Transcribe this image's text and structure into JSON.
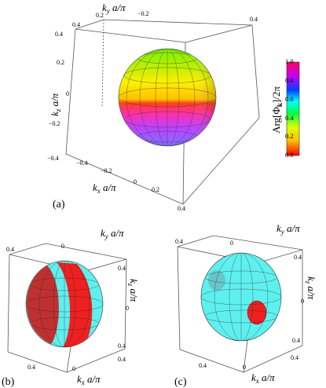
{
  "panel_a": {
    "label": "(a)",
    "axes": {
      "x": "kₓa/π",
      "y": "k_ya/π",
      "z": "k_za/π"
    },
    "ky_ticks": [
      "0.4",
      "0.2",
      "0",
      "−0.2",
      "−0.4"
    ],
    "ky_ticks_shown": {
      "a": "0.4",
      "b": "0.2",
      "c": "−0.2",
      "d": "0.4"
    },
    "kz_ticks": [
      "0.4",
      "0.2",
      "0",
      "−0.2",
      "−0.4"
    ],
    "kx_ticks": [
      "−0.4",
      "−0.2",
      "0",
      "0.2",
      "0.4"
    ],
    "colorbar": {
      "title": "Arg[Φk]/2π",
      "ticks": [
        "1.0",
        "0.8",
        "0.6",
        "0.4",
        "0.2",
        "0.0"
      ]
    }
  },
  "panel_b": {
    "label": "(b)",
    "axes": {
      "x": "kₓa/π",
      "y": "k_ya/π",
      "z": "k_za/π"
    },
    "ticks": {
      "ky_top": "0.4",
      "ky_zero": "0",
      "kz_top": "0.4",
      "kx_left": "0.4",
      "kx_zero": "0",
      "kx_right": "0.4"
    }
  },
  "panel_c": {
    "label": "(c)",
    "axes": {
      "x": "kₓa/π",
      "y": "k_ya/π",
      "z": "k_za/π"
    },
    "ticks": {
      "ky_top": "0.4",
      "ky_zero": "0",
      "kz_top": "0.4",
      "kx_left": "0.4",
      "kx_zero": "0",
      "kx_right": "0.4"
    }
  },
  "colors": {
    "sphere_cyan": "#5ef0ee",
    "sphere_red": "#ee2020",
    "box_line": "#555555"
  }
}
